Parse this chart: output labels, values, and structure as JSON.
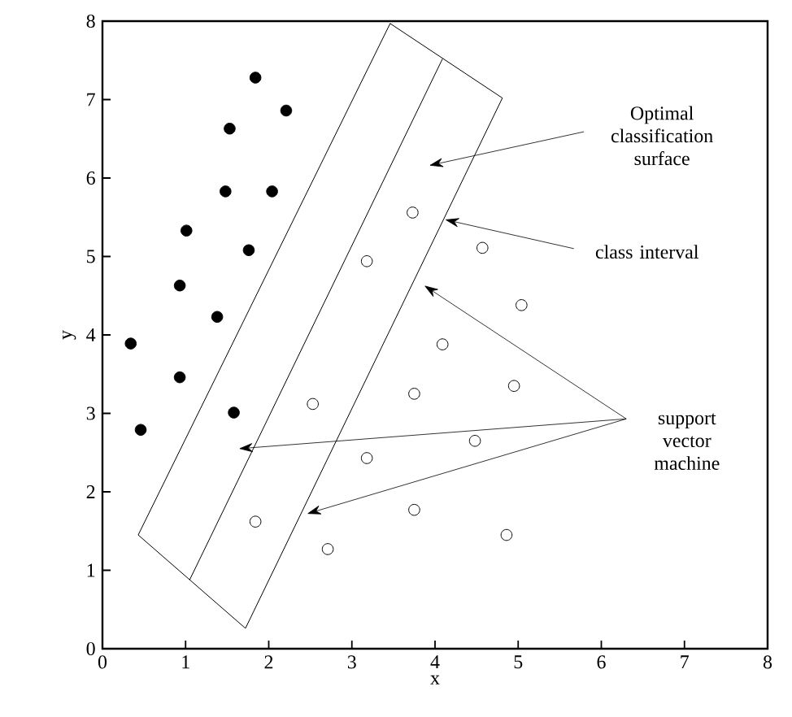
{
  "chart_data": {
    "type": "scatter",
    "xlabel": "x",
    "ylabel": "y",
    "xlim": [
      0,
      8
    ],
    "ylim": [
      0,
      8
    ],
    "xticks": [
      0,
      1,
      2,
      3,
      4,
      5,
      6,
      7,
      8
    ],
    "yticks": [
      0,
      1,
      2,
      3,
      4,
      5,
      6,
      7,
      8
    ],
    "grid": false,
    "series": [
      {
        "marker": "circle",
        "color": "#000000",
        "x": [
          0.34,
          0.46,
          0.93,
          0.93,
          1.01,
          1.38,
          1.48,
          1.53,
          1.58,
          1.76,
          1.84,
          2.04,
          2.21
        ],
        "values": [
          3.89,
          2.79,
          3.46,
          4.63,
          5.33,
          4.23,
          5.83,
          6.63,
          3.01,
          5.08,
          7.28,
          5.83,
          6.86
        ]
      },
      {
        "marker": "circle",
        "color": "#ffffff",
        "x": [
          1.84,
          2.53,
          2.71,
          3.18,
          3.18,
          3.73,
          4.57,
          5.04,
          4.09,
          3.75,
          4.95,
          4.48,
          3.75,
          4.86
        ],
        "values": [
          1.62,
          3.12,
          1.27,
          2.43,
          4.94,
          5.56,
          5.11,
          4.38,
          3.88,
          3.25,
          3.35,
          2.65,
          1.77,
          1.45
        ]
      },
      {
        "type": "line",
        "marker": "none",
        "color": "#000000",
        "x": [
          0.43,
          3.46
        ],
        "values": [
          1.45,
          7.97
        ]
      },
      {
        "type": "line",
        "marker": "none",
        "color": "#000000",
        "x": [
          3.46,
          4.81
        ],
        "values": [
          7.97,
          7.02
        ]
      },
      {
        "type": "line",
        "marker": "none",
        "color": "#000000",
        "x": [
          1.72,
          4.81
        ],
        "values": [
          0.26,
          7.02
        ]
      },
      {
        "type": "line",
        "marker": "none",
        "color": "#000000",
        "x": [
          0.43,
          1.72
        ],
        "values": [
          1.45,
          0.26
        ]
      },
      {
        "type": "line",
        "marker": "none",
        "color": "#000000",
        "x": [
          1.05,
          4.09
        ],
        "values": [
          0.88,
          7.52
        ]
      }
    ],
    "annotations": [
      "Optimal classification surface",
      "class interval",
      "support vector machine"
    ]
  }
}
